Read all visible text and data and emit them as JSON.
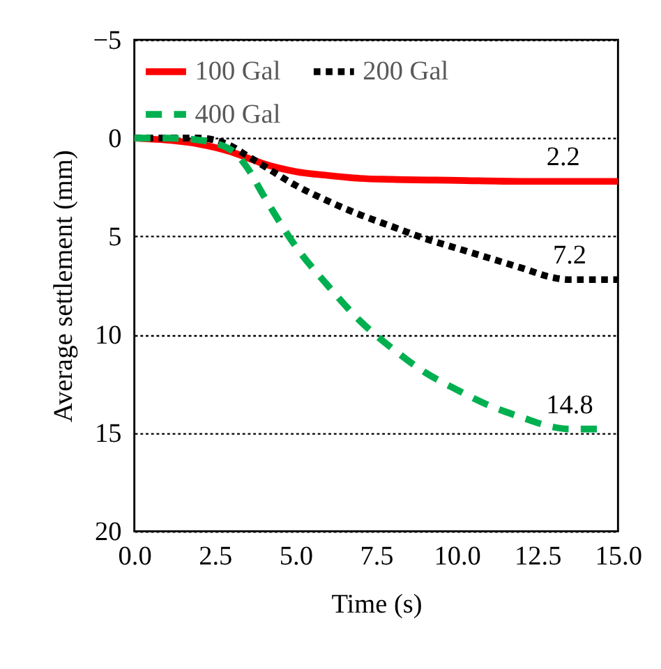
{
  "chart_data": {
    "type": "line",
    "xlabel": "Time (s)",
    "ylabel": "Average settlement (mm)",
    "xlim": [
      0,
      15
    ],
    "ylim": [
      20,
      -5
    ],
    "xticks": [
      {
        "value": 0,
        "label": "0.0"
      },
      {
        "value": 2.5,
        "label": "2.5"
      },
      {
        "value": 5,
        "label": "5.0"
      },
      {
        "value": 7.5,
        "label": "7.5"
      },
      {
        "value": 10,
        "label": "10.0"
      },
      {
        "value": 12.5,
        "label": "12.5"
      },
      {
        "value": 15,
        "label": "15.0"
      }
    ],
    "yticks": [
      -5,
      0,
      5,
      10,
      15,
      20
    ],
    "grid": "y",
    "legend": "top",
    "series": [
      {
        "name": "100 Gal",
        "color": "#ff0000",
        "line_style": "solid",
        "x": [
          0,
          1,
          2,
          3,
          3.5,
          4,
          5,
          6,
          7,
          8,
          10,
          12,
          13.3,
          15
        ],
        "values": [
          0,
          0.1,
          0.3,
          0.7,
          1.0,
          1.3,
          1.7,
          1.9,
          2.05,
          2.1,
          2.15,
          2.2,
          2.2,
          2.2
        ],
        "value_labels": [
          null,
          null,
          null,
          null,
          null,
          null,
          null,
          null,
          null,
          null,
          null,
          null,
          "2.2",
          null
        ]
      },
      {
        "name": "200 Gal",
        "color": "#000000",
        "line_style": "dotted",
        "x": [
          0,
          1,
          2,
          3,
          3.5,
          4,
          5,
          6,
          7,
          8,
          9,
          10,
          11,
          12,
          13,
          13.5,
          15
        ],
        "values": [
          0,
          0,
          0,
          0.4,
          0.9,
          1.4,
          2.4,
          3.2,
          3.9,
          4.5,
          5.1,
          5.6,
          6.1,
          6.6,
          7.1,
          7.2,
          7.2
        ],
        "value_labels": [
          null,
          null,
          null,
          null,
          null,
          null,
          null,
          null,
          null,
          null,
          null,
          null,
          null,
          null,
          null,
          "7.2",
          null
        ]
      },
      {
        "name": "400 Gal",
        "color": "#00b050",
        "line_style": "dashed",
        "x": [
          0,
          1,
          2,
          3,
          3.5,
          4,
          5,
          6,
          7,
          8,
          9,
          10,
          11,
          12,
          13,
          13.5,
          14.5
        ],
        "values": [
          0,
          0,
          0.1,
          0.6,
          1.5,
          2.9,
          5.5,
          7.5,
          9.3,
          10.7,
          11.9,
          12.8,
          13.6,
          14.2,
          14.7,
          14.8,
          14.8
        ],
        "value_labels": [
          null,
          null,
          null,
          null,
          null,
          null,
          null,
          null,
          null,
          null,
          null,
          null,
          null,
          null,
          null,
          "14.8",
          null
        ]
      }
    ]
  }
}
